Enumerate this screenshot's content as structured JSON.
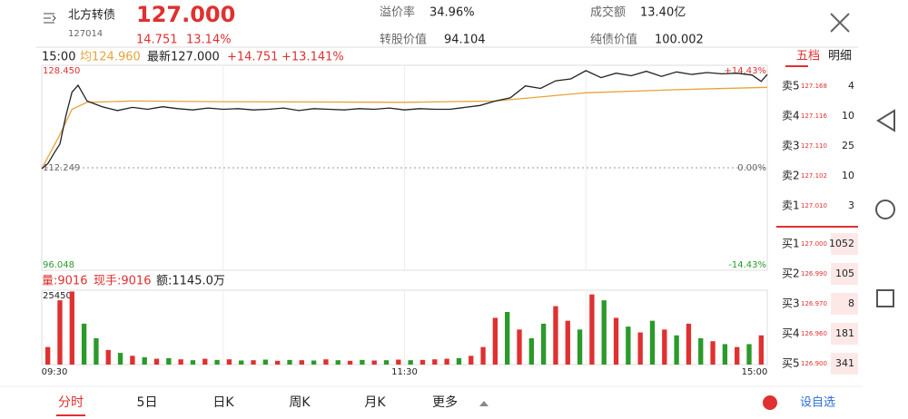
{
  "header": {
    "name": "北方转债",
    "code": "127014",
    "price": "127.000",
    "change": "14.751",
    "change_pct": "13.14%",
    "stats": [
      {
        "label": "溢价率",
        "value": "34.96%"
      },
      {
        "label": "成交额",
        "value": "13.40亿"
      },
      {
        "label": "转股价值",
        "value": "94.104"
      },
      {
        "label": "纯债价值",
        "value": "100.002"
      }
    ]
  },
  "info": {
    "time": "15:00",
    "avg": "均124.960",
    "latest": "最新127.000",
    "change": "+14.751",
    "change_pct": "+13.141%"
  },
  "chart": {
    "type": "line",
    "price_chart": {
      "ylim": [
        96.048,
        128.45
      ],
      "yticks": [
        96.048,
        112.249,
        {
          "value": 128.45,
          "label": "128.450"
        }
      ],
      "pct_lim": [
        -14.43,
        14.43
      ],
      "pct_ticks": [
        {
          "value": -14.43,
          "label": "-14.43%"
        },
        {
          "value": 0,
          "label": "0.00%"
        },
        {
          "value": 14.43,
          "label": "+14.43%"
        }
      ],
      "xlim": [
        0,
        240
      ],
      "x": [
        0,
        2,
        4,
        6,
        8,
        10,
        12,
        15,
        20,
        25,
        30,
        35,
        40,
        45,
        50,
        55,
        60,
        65,
        70,
        75,
        80,
        85,
        90,
        95,
        100,
        105,
        110,
        115,
        120,
        125,
        130,
        135,
        140,
        145,
        150,
        155,
        160,
        165,
        170,
        175,
        180,
        185,
        190,
        195,
        200,
        205,
        210,
        215,
        220,
        225,
        230,
        235,
        238,
        240
      ],
      "price": [
        112.1,
        112.9,
        114.5,
        116.0,
        120.5,
        124.2,
        125.3,
        122.8,
        121.9,
        121.3,
        121.8,
        121.5,
        121.9,
        121.6,
        121.4,
        121.7,
        121.5,
        121.6,
        121.4,
        121.5,
        121.7,
        121.3,
        121.6,
        121.5,
        121.4,
        121.6,
        121.5,
        121.7,
        121.4,
        121.6,
        121.5,
        121.5,
        121.8,
        122.1,
        122.8,
        123.3,
        125.2,
        124.8,
        126.0,
        126.3,
        127.6,
        126.5,
        127.2,
        126.8,
        127.5,
        126.7,
        127.4,
        127.0,
        127.3,
        127.1,
        127.2,
        126.9,
        125.9,
        127.0
      ],
      "avg_x": [
        0,
        6,
        10,
        15,
        30,
        60,
        120,
        150,
        180,
        210,
        240
      ],
      "avg": [
        112.1,
        117.5,
        121.5,
        122.6,
        122.8,
        122.7,
        122.6,
        122.8,
        124.1,
        124.6,
        124.96
      ],
      "line_color": "#222222",
      "avg_color": "#e8a33a",
      "time_labels": [
        "09:30",
        "11:30",
        "15:00"
      ]
    },
    "volume": {
      "title": "量:9016",
      "hand": "现手:9016",
      "amount": "额:1145.0万",
      "ylim": [
        0,
        25450
      ],
      "yticks": [
        25450
      ],
      "values": [
        6000,
        22000,
        25000,
        14000,
        9000,
        5000,
        4000,
        3000,
        2500,
        2000,
        2200,
        1800,
        1500,
        2000,
        1600,
        1800,
        1400,
        1500,
        1700,
        1300,
        1600,
        1500,
        1400,
        1800,
        1500,
        1300,
        1600,
        1400,
        1500,
        1700,
        1500,
        1600,
        1800,
        2000,
        2200,
        3000,
        6000,
        16000,
        18000,
        12000,
        9000,
        14000,
        20000,
        15000,
        12000,
        24000,
        22000,
        16000,
        13000,
        11000,
        15000,
        12000,
        10000,
        14000,
        9000,
        8000,
        7000,
        6000,
        7000,
        10000
      ],
      "colors": [
        "#e03030",
        "#e03030",
        "#e03030",
        "#2a9a2a",
        "#2a9a2a",
        "#e03030",
        "#2a9a2a",
        "#e03030",
        "#2a9a2a",
        "#e03030",
        "#2a9a2a",
        "#e03030",
        "#2a9a2a",
        "#e03030",
        "#2a9a2a",
        "#e03030",
        "#2a9a2a",
        "#e03030",
        "#2a9a2a",
        "#e03030",
        "#2a9a2a",
        "#e03030",
        "#2a9a2a",
        "#e03030",
        "#2a9a2a",
        "#e03030",
        "#2a9a2a",
        "#e03030",
        "#2a9a2a",
        "#e03030",
        "#2a9a2a",
        "#e03030",
        "#e03030",
        "#e03030",
        "#2a9a2a",
        "#e03030",
        "#e03030",
        "#e03030",
        "#2a9a2a",
        "#e03030",
        "#2a9a2a",
        "#2a9a2a",
        "#e03030",
        "#e03030",
        "#2a9a2a",
        "#e03030",
        "#2a9a2a",
        "#e03030",
        "#2a9a2a",
        "#e03030",
        "#2a9a2a",
        "#e03030",
        "#2a9a2a",
        "#e03030",
        "#2a9a2a",
        "#e03030",
        "#2a9a2a",
        "#e03030",
        "#2a9a2a",
        "#e03030"
      ]
    }
  },
  "order_book": {
    "tabs": [
      "五档",
      "明细"
    ],
    "sell": [
      [
        "卖5",
        "127.168",
        "4"
      ],
      [
        "卖4",
        "127.116",
        "10"
      ],
      [
        "卖3",
        "127.110",
        "25"
      ],
      [
        "卖2",
        "127.102",
        "10"
      ],
      [
        "卖1",
        "127.010",
        "3"
      ]
    ],
    "buy": [
      [
        "买1",
        "127.000",
        "1052"
      ],
      [
        "买2",
        "126.990",
        "105"
      ],
      [
        "买3",
        "126.970",
        "8"
      ],
      [
        "买4",
        "126.960",
        "181"
      ],
      [
        "买5",
        "126.900",
        "341"
      ]
    ]
  },
  "tabs": [
    "分时",
    "5日",
    "日K",
    "周K",
    "月K",
    "更多"
  ],
  "add_watch": "设自选"
}
